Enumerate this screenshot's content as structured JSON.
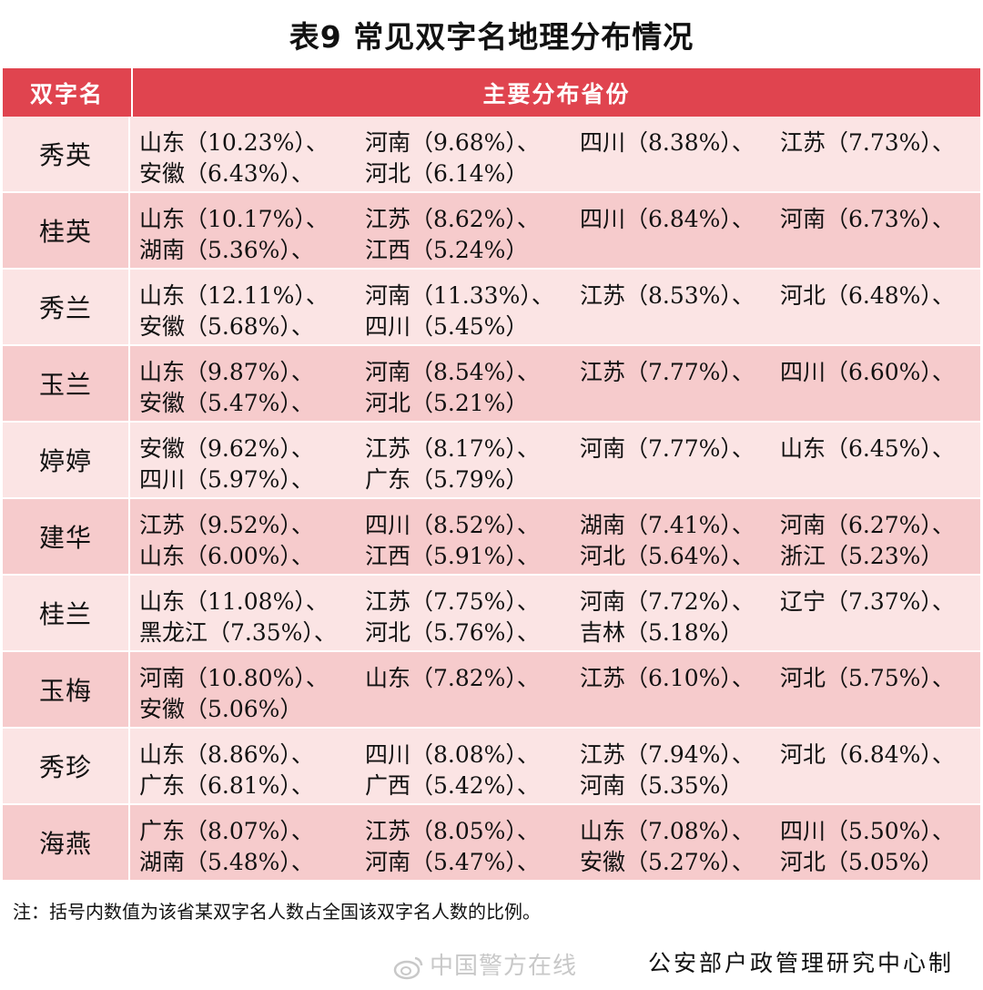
{
  "title": "表9  常见双字名地理分布情况",
  "header": {
    "col1": "双字名",
    "col2": "主要分布省份"
  },
  "rows": [
    {
      "name": "秀英",
      "lines": [
        [
          "山东（10.23%）、",
          "河南（9.68%）、",
          "四川（8.38%）、",
          "江苏（7.73%）、"
        ],
        [
          "安徽（6.43%）、",
          "河北（6.14%）"
        ]
      ]
    },
    {
      "name": "桂英",
      "lines": [
        [
          "山东（10.17%）、",
          "江苏（8.62%）、",
          "四川（6.84%）、",
          "河南（6.73%）、"
        ],
        [
          "湖南（5.36%）、",
          "江西（5.24%）"
        ]
      ]
    },
    {
      "name": "秀兰",
      "lines": [
        [
          "山东（12.11%）、",
          "河南（11.33%）、",
          "江苏（8.53%）、",
          "河北（6.48%）、"
        ],
        [
          "安徽（5.68%）、",
          "四川（5.45%）"
        ]
      ]
    },
    {
      "name": "玉兰",
      "lines": [
        [
          "山东（9.87%）、",
          "河南（8.54%）、",
          "江苏（7.77%）、",
          "四川（6.60%）、"
        ],
        [
          "安徽（5.47%）、",
          "河北（5.21%）"
        ]
      ]
    },
    {
      "name": "婷婷",
      "lines": [
        [
          "安徽（9.62%）、",
          "江苏（8.17%）、",
          "河南（7.77%）、",
          "山东（6.45%）、"
        ],
        [
          "四川（5.97%）、",
          "广东（5.79%）"
        ]
      ]
    },
    {
      "name": "建华",
      "lines": [
        [
          "江苏（9.52%）、",
          "四川（8.52%）、",
          "湖南（7.41%）、",
          "河南（6.27%）、"
        ],
        [
          "山东（6.00%）、",
          "江西（5.91%）、",
          "河北（5.64%）、",
          "浙江（5.23%）"
        ]
      ]
    },
    {
      "name": "桂兰",
      "lines": [
        [
          "山东（11.08%）、",
          "江苏（7.75%）、",
          "河南（7.72%）、",
          "辽宁（7.37%）、"
        ],
        [
          "黑龙江（7.35%）、",
          "河北（5.76%）、",
          "吉林（5.18%）"
        ]
      ]
    },
    {
      "name": "玉梅",
      "lines": [
        [
          "河南（10.80%）、",
          "山东（7.82%）、",
          "江苏（6.10%）、",
          "河北（5.75%）、"
        ],
        [
          "安徽（5.06%）"
        ]
      ]
    },
    {
      "name": "秀珍",
      "lines": [
        [
          "山东（8.86%）、",
          "四川（8.08%）、",
          "江苏（7.94%）、",
          "河北（6.84%）、"
        ],
        [
          "广东（6.81%）、",
          "广西（5.42%）、",
          "河南（5.35%）"
        ]
      ]
    },
    {
      "name": "海燕",
      "lines": [
        [
          "广东（8.07%）、",
          "江苏（8.05%）、",
          "山东（7.08%）、",
          "四川（5.50%）、"
        ],
        [
          "湖南（5.48%）、",
          "河南（5.47%）、",
          "安徽（5.27%）、",
          "河北（5.05%）"
        ]
      ]
    }
  ],
  "note": "注：括号内数值为该省某双字名人数占全国该双字名人数的比例。",
  "watermark": "中国警方在线",
  "source": "公安部户政管理研究中心制",
  "colors": {
    "header_bg": "#e0444f",
    "row_light": "#fbe4e4",
    "row_dark": "#f6cbcc"
  },
  "icons": {
    "watermark_icon": "weibo-icon"
  }
}
